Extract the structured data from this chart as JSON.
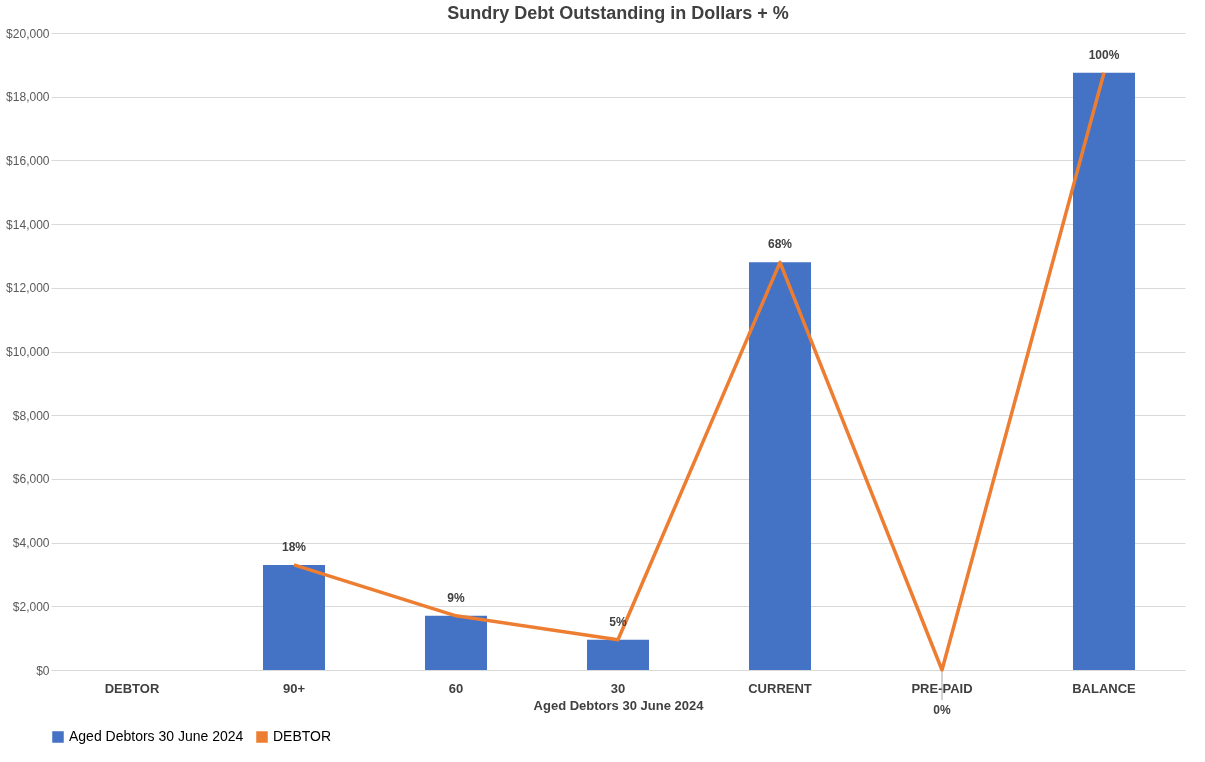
{
  "chart_data": {
    "type": "bar",
    "title": "Sundry Debt Outstanding in Dollars + %",
    "xlabel": "Aged Debtors 30 June 2024",
    "categories": [
      "DEBTOR",
      "90+",
      "60",
      "30",
      "CURRENT",
      "PRE-PAID",
      "BALANCE"
    ],
    "series": [
      {
        "name": "Aged Debtors 30 June 2024",
        "color": "#4472c4",
        "values": [
          null,
          3300,
          1700,
          950,
          12800,
          0,
          18750
        ]
      },
      {
        "name": "DEBTOR",
        "type": "line",
        "color": "#ed7d31",
        "values": [
          null,
          3300,
          1700,
          950,
          12800,
          0,
          18750
        ]
      }
    ],
    "annotations": [
      {
        "text": "18%",
        "x": "90+",
        "y": 3300
      },
      {
        "text": "9%",
        "x": "60",
        "y": 1700
      },
      {
        "text": "5%",
        "x": "30",
        "y": 950
      },
      {
        "text": "68%",
        "x": "CURRENT",
        "y": 12800
      },
      {
        "text": "0%",
        "x": "PRE-PAID",
        "y": 0
      },
      {
        "text": "100%",
        "x": "BALANCE",
        "y": 18750
      }
    ],
    "ylim": [
      0,
      20000
    ],
    "yticks": [
      {
        "value": 0,
        "label": "$0"
      },
      {
        "value": 2000,
        "label": "$2,000"
      },
      {
        "value": 4000,
        "label": "$4,000"
      },
      {
        "value": 6000,
        "label": "$6,000"
      },
      {
        "value": 8000,
        "label": "$8,000"
      },
      {
        "value": 10000,
        "label": "$10,000"
      },
      {
        "value": 12000,
        "label": "$12,000"
      },
      {
        "value": 14000,
        "label": "$14,000"
      },
      {
        "value": 16000,
        "label": "$16,000"
      },
      {
        "value": 18000,
        "label": "$18,000"
      },
      {
        "value": 20000,
        "label": "$20,000"
      }
    ],
    "grid": "y",
    "legend": "bottom",
    "marker": "none",
    "line_style": "solid"
  }
}
